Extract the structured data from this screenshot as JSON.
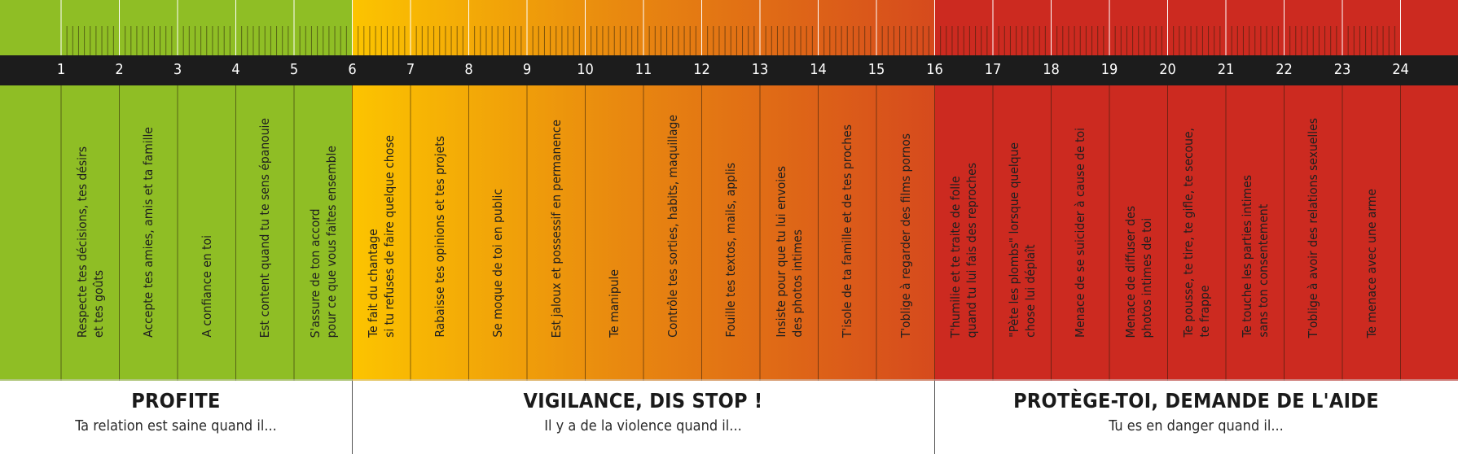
{
  "colors": {
    "green": "#8fbe25",
    "yellow": "#fcc400",
    "orange": "#e98a0f",
    "red_orange": "#d64a1d",
    "red": "#cc2a20",
    "band": "#1c1c1c"
  },
  "numbers": [
    "1",
    "2",
    "3",
    "4",
    "5",
    "6",
    "7",
    "8",
    "9",
    "10",
    "11",
    "12",
    "13",
    "14",
    "15",
    "16",
    "17",
    "18",
    "19",
    "20",
    "21",
    "22",
    "23",
    "24"
  ],
  "columns": [
    {
      "label": "Respecte tes décisions, tes désirs\net tes goûts"
    },
    {
      "label": "Accepte tes amies, amis et ta famille"
    },
    {
      "label": "A confiance en toi"
    },
    {
      "label": "Est content quand tu te sens épanouie"
    },
    {
      "label": "S'assure de ton accord\npour ce que vous faites ensemble"
    },
    {
      "label": "Te fait du chantage\nsi tu refuses de faire quelque chose"
    },
    {
      "label": "Rabaisse tes opinions et tes projets"
    },
    {
      "label": "Se moque de toi en public"
    },
    {
      "label": "Est jaloux et possessif en permanence"
    },
    {
      "label": "Te manipule"
    },
    {
      "label": "Contrôle tes sorties, habits, maquillage"
    },
    {
      "label": "Fouille tes textos, mails, applis"
    },
    {
      "label": "Insiste pour que tu lui envoies\ndes photos intimes"
    },
    {
      "label": "T'isole de ta famille et de tes proches"
    },
    {
      "label": "T'oblige à regarder des films pornos"
    },
    {
      "label": "T'humilie et te traite de folle\nquand tu lui fais des reproches"
    },
    {
      "label": "\"Pète les plombs\" lorsque quelque\nchose lui déplaît"
    },
    {
      "label": "Menace de se suicider à cause de toi"
    },
    {
      "label": "Menace de diffuser des\nphotos intimes de toi"
    },
    {
      "label": "Te pousse, te tire, te gifle, te secoue,\nte frappe"
    },
    {
      "label": "Te touche les parties intimes\nsans ton consentement"
    },
    {
      "label": "T'oblige à avoir des relations sexuelles"
    },
    {
      "label": "Te menace avec une arme"
    }
  ],
  "sections": [
    {
      "title": "PROFITE",
      "subtitle": "Ta relation est saine quand il..."
    },
    {
      "title": "VIGILANCE, DIS STOP !",
      "subtitle": "Il y a de la violence quand il..."
    },
    {
      "title": "PROTÈGE-TOI, DEMANDE DE L'AIDE",
      "subtitle": "Tu es en danger quand il..."
    }
  ]
}
